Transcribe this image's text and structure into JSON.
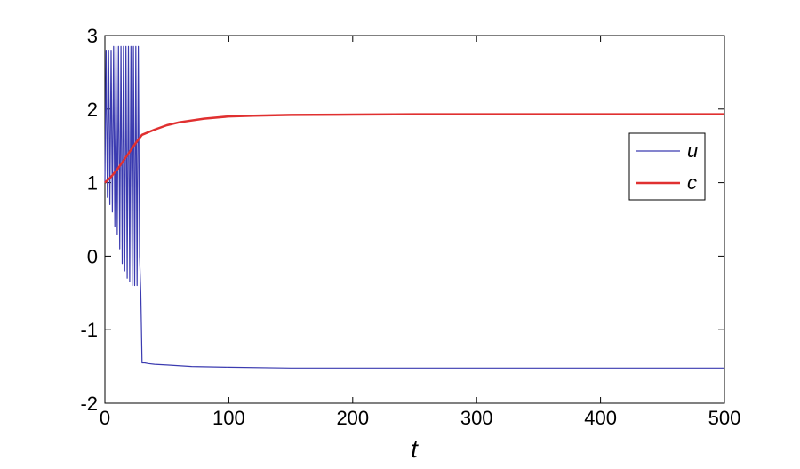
{
  "chart_data": {
    "type": "line",
    "title": "",
    "xlabel": "t",
    "ylabel": "",
    "xlim": [
      0,
      500
    ],
    "ylim": [
      -2,
      3
    ],
    "xticks": [
      0,
      100,
      200,
      300,
      400,
      500
    ],
    "yticks": [
      -2,
      -1,
      0,
      1,
      2,
      3
    ],
    "grid": false,
    "legend_position": "right",
    "series": [
      {
        "name": "u",
        "color": "#3b3bb0",
        "x": [
          0,
          1,
          2,
          3,
          4,
          5,
          6,
          7,
          8,
          9,
          10,
          11,
          12,
          13,
          14,
          15,
          16,
          17,
          18,
          19,
          20,
          21,
          22,
          23,
          24,
          25,
          26,
          27,
          28,
          29,
          30,
          32,
          35,
          40,
          50,
          70,
          100,
          150,
          200,
          300,
          400,
          500
        ],
        "y": [
          1.0,
          2.8,
          0.8,
          2.8,
          0.7,
          2.8,
          0.6,
          2.85,
          0.4,
          2.85,
          0.3,
          2.85,
          0.1,
          2.85,
          -0.1,
          2.85,
          -0.2,
          2.85,
          -0.3,
          2.85,
          -0.35,
          2.85,
          -0.4,
          2.85,
          -0.4,
          2.85,
          -0.4,
          2.85,
          0.0,
          -0.5,
          -1.45,
          -1.45,
          -1.46,
          -1.47,
          -1.48,
          -1.5,
          -1.51,
          -1.52,
          -1.52,
          -1.52,
          -1.52,
          -1.52
        ]
      },
      {
        "name": "c",
        "color": "#e03030",
        "x": [
          0,
          5,
          10,
          15,
          20,
          25,
          30,
          40,
          50,
          60,
          80,
          100,
          120,
          150,
          200,
          250,
          300,
          400,
          500
        ],
        "y": [
          1.0,
          1.08,
          1.18,
          1.3,
          1.42,
          1.54,
          1.65,
          1.72,
          1.78,
          1.82,
          1.87,
          1.9,
          1.91,
          1.92,
          1.925,
          1.93,
          1.93,
          1.93,
          1.93
        ]
      }
    ]
  }
}
